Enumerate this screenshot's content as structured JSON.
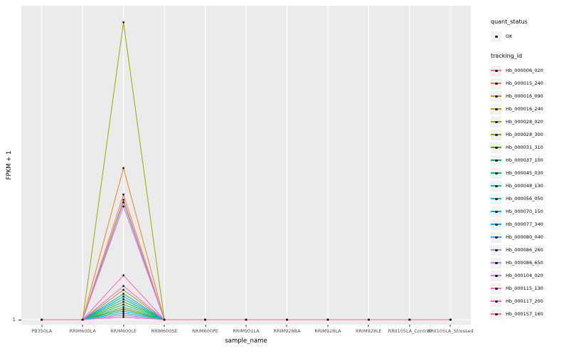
{
  "chart_data": {
    "type": "line",
    "title": "",
    "xlabel": "sample_name",
    "ylabel": "FPKM + 1",
    "y_ticks": [
      "1"
    ],
    "ylim": [
      1,
      460
    ],
    "grid": "on",
    "panel_color": "#EBEBEB",
    "legend_position": "right",
    "categories": [
      "PB350LA",
      "RRIM600LA",
      "RRIM600LE",
      "RRIM600SE",
      "RRIM600PE",
      "RRIM901LA",
      "RRIM928BA",
      "RRIM928LA",
      "RRIM928LE",
      "RRII105LA_Control",
      "RRII105LA_Stressed"
    ],
    "legend": {
      "quant_status_title": "quant_status",
      "quant_status_items": [
        "OK"
      ],
      "tracking_id_title": "tracking_id"
    },
    "series": [
      {
        "name": "Hb_000006_020",
        "color": "#F8766D",
        "values": [
          1,
          1,
          190,
          1,
          1,
          1,
          1,
          1,
          1,
          1,
          1
        ]
      },
      {
        "name": "Hb_000015_240",
        "color": "#EA8331",
        "values": [
          1,
          1,
          230,
          1,
          1,
          1,
          1,
          1,
          1,
          1,
          1
        ]
      },
      {
        "name": "Hb_000016_090",
        "color": "#D89000",
        "values": [
          1,
          1,
          182,
          1,
          1,
          1,
          1,
          1,
          1,
          1,
          1
        ]
      },
      {
        "name": "Hb_000016_240",
        "color": "#C09B00",
        "values": [
          1,
          1,
          46,
          1,
          1,
          1,
          1,
          1,
          1,
          1,
          1
        ]
      },
      {
        "name": "Hb_000028_020",
        "color": "#A3A500",
        "values": [
          1,
          1,
          450,
          1,
          1,
          1,
          1,
          1,
          1,
          1,
          1
        ]
      },
      {
        "name": "Hb_000028_300",
        "color": "#7CAE00",
        "values": [
          1,
          1,
          20,
          1,
          1,
          1,
          1,
          1,
          1,
          1,
          1
        ]
      },
      {
        "name": "Hb_000031_310",
        "color": "#39B600",
        "values": [
          1,
          1,
          28,
          1,
          1,
          1,
          1,
          1,
          1,
          1,
          1
        ]
      },
      {
        "name": "Hb_000037_100",
        "color": "#00BB4E",
        "values": [
          1,
          1,
          17,
          1,
          1,
          1,
          1,
          1,
          1,
          1,
          1
        ]
      },
      {
        "name": "Hb_000045_030",
        "color": "#00BF7D",
        "values": [
          1,
          1,
          32,
          1,
          1,
          1,
          1,
          1,
          1,
          1,
          1
        ]
      },
      {
        "name": "Hb_000048_130",
        "color": "#00C1A3",
        "values": [
          1,
          1,
          24,
          1,
          1,
          1,
          1,
          1,
          1,
          1,
          1
        ]
      },
      {
        "name": "Hb_000056_050",
        "color": "#00BFC4",
        "values": [
          1,
          1,
          40,
          1,
          1,
          1,
          1,
          1,
          1,
          1,
          1
        ]
      },
      {
        "name": "Hb_000070_150",
        "color": "#00BAE0",
        "values": [
          1,
          1,
          14,
          1,
          1,
          1,
          1,
          1,
          1,
          1,
          1
        ]
      },
      {
        "name": "Hb_000077_340",
        "color": "#00B0F6",
        "values": [
          1,
          1,
          36,
          1,
          1,
          1,
          1,
          1,
          1,
          1,
          1
        ]
      },
      {
        "name": "Hb_000080_040",
        "color": "#35A2FF",
        "values": [
          1,
          1,
          11,
          1,
          1,
          1,
          1,
          1,
          1,
          1,
          1
        ]
      },
      {
        "name": "Hb_000086_260",
        "color": "#9590FF",
        "values": [
          1,
          1,
          178,
          1,
          1,
          1,
          1,
          1,
          1,
          1,
          1
        ]
      },
      {
        "name": "Hb_000086_650",
        "color": "#C77CFF",
        "values": [
          1,
          1,
          172,
          1,
          1,
          1,
          1,
          1,
          1,
          1,
          1
        ]
      },
      {
        "name": "Hb_000104_020",
        "color": "#E76BF3",
        "values": [
          1,
          1,
          5,
          1,
          1,
          1,
          1,
          1,
          1,
          1,
          1
        ]
      },
      {
        "name": "Hb_000115_130",
        "color": "#FA62DB",
        "values": [
          1,
          1,
          52,
          1,
          1,
          1,
          1,
          1,
          1,
          1,
          1
        ]
      },
      {
        "name": "Hb_000117_200",
        "color": "#FF62BC",
        "values": [
          1,
          1,
          68,
          1,
          1,
          1,
          1,
          1,
          1,
          1,
          1
        ]
      },
      {
        "name": "Hb_000157_160",
        "color": "#FF6A98",
        "values": [
          1,
          1,
          8,
          1,
          1,
          1,
          1,
          1,
          1,
          1,
          1
        ]
      }
    ]
  }
}
